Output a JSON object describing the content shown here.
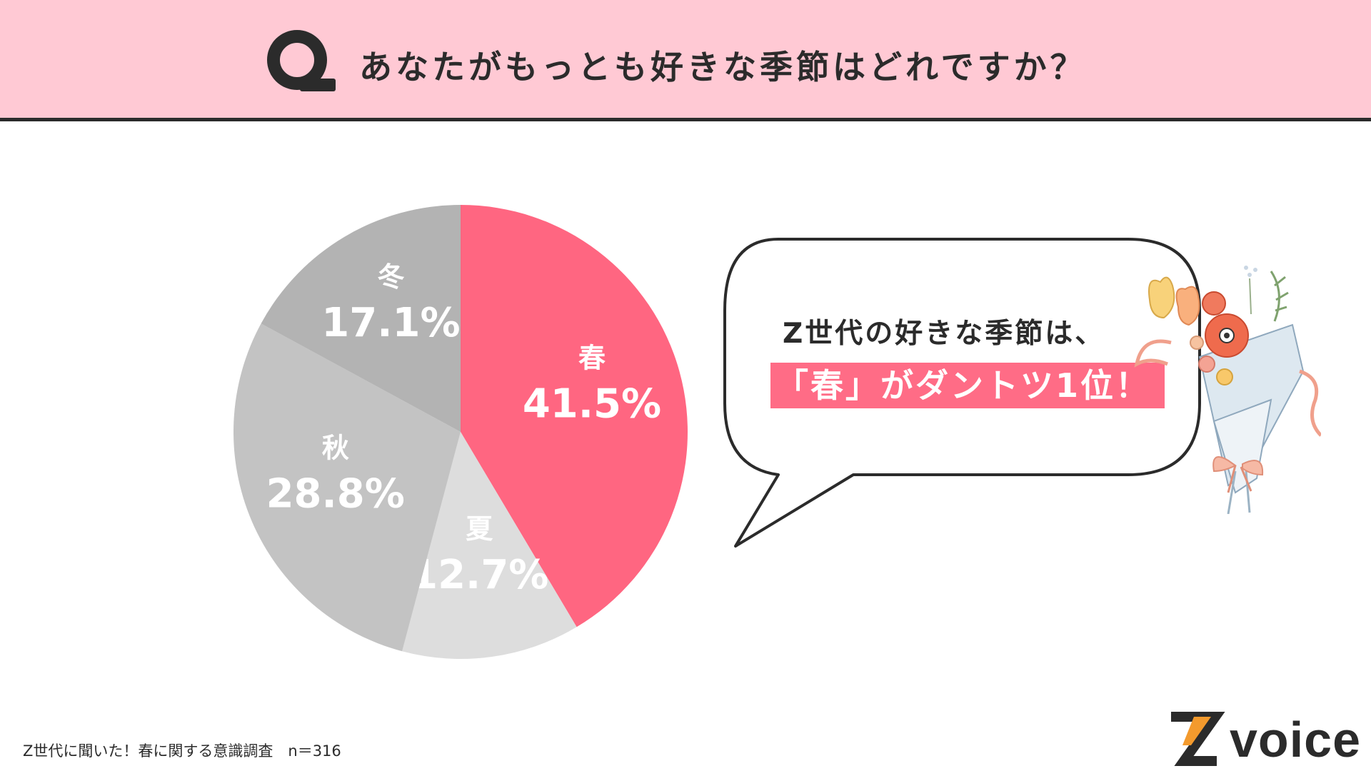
{
  "header": {
    "question": "あなたがもっとも好きな季節はどれですか？"
  },
  "chart_data": {
    "type": "pie",
    "title": "",
    "slices": [
      {
        "label": "春",
        "value": 41.5,
        "display": "41.5%",
        "color": "#ff6681"
      },
      {
        "label": "夏",
        "value": 12.7,
        "display": "12.7%",
        "color": "#dddddd"
      },
      {
        "label": "秋",
        "value": 28.8,
        "display": "28.8%",
        "color": "#c3c3c3"
      },
      {
        "label": "冬",
        "value": 17.1,
        "display": "17.1%",
        "color": "#b3b3b3"
      }
    ],
    "start_angle_deg": 0,
    "direction": "clockwise",
    "legend": "none"
  },
  "callout": {
    "line1": "Z世代の好きな季節は、",
    "line2": "「春」がダントツ1位！"
  },
  "footer": {
    "note": "Z世代に聞いた！春に関する意識調査　n＝316",
    "brand": "voice",
    "brand_letter": "Z"
  },
  "colors": {
    "header_bg": "#ffc9d4",
    "accent": "#ff6c86",
    "text": "#2b2b2b",
    "brand_orange": "#f39a2d"
  },
  "icons": {
    "question_mark": "q-logo-icon",
    "illustration": "flower-bouquet-icon"
  }
}
